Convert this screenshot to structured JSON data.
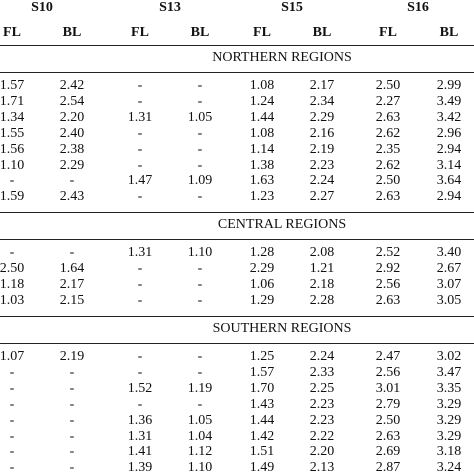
{
  "table": {
    "groups": [
      "S10",
      "S13",
      "S15",
      "S16"
    ],
    "subheaders": [
      "FL",
      "BL",
      "FL",
      "BL",
      "FL",
      "BL",
      "FL",
      "BL"
    ],
    "sections": [
      {
        "title": "NORTHERN REGIONS",
        "rows": [
          [
            "1.57",
            "2.42",
            "-",
            "-",
            "1.08",
            "2.17",
            "2.50",
            "2.99"
          ],
          [
            "1.71",
            "2.54",
            "-",
            "-",
            "1.24",
            "2.34",
            "2.27",
            "3.49"
          ],
          [
            "1.34",
            "2.20",
            "1.31",
            "1.05",
            "1.44",
            "2.29",
            "2.63",
            "3.42"
          ],
          [
            "1.55",
            "2.40",
            "-",
            "-",
            "1.08",
            "2.16",
            "2.62",
            "2.96"
          ],
          [
            "1.56",
            "2.38",
            "-",
            "-",
            "1.14",
            "2.19",
            "2.35",
            "2.94"
          ],
          [
            "1.10",
            "2.29",
            "-",
            "-",
            "1.38",
            "2.23",
            "2.62",
            "3.14"
          ],
          [
            "-",
            "-",
            "1.47",
            "1.09",
            "1.63",
            "2.24",
            "2.50",
            "3.64"
          ],
          [
            "1.59",
            "2.43",
            "-",
            "-",
            "1.23",
            "2.27",
            "2.63",
            "2.94"
          ]
        ]
      },
      {
        "title": "CENTRAL REGIONS",
        "rows": [
          [
            "-",
            "-",
            "1.31",
            "1.10",
            "1.28",
            "2.08",
            "2.52",
            "3.40"
          ],
          [
            "2.50",
            "1.64",
            "-",
            "-",
            "2.29",
            "1.21",
            "2.92",
            "2.67"
          ],
          [
            "1.18",
            "2.17",
            "-",
            "-",
            "1.06",
            "2.18",
            "2.56",
            "3.07"
          ],
          [
            "1.03",
            "2.15",
            "-",
            "-",
            "1.29",
            "2.28",
            "2.63",
            "3.05"
          ]
        ]
      },
      {
        "title": "SOUTHERN REGIONS",
        "rows": [
          [
            "1.07",
            "2.19",
            "-",
            "-",
            "1.25",
            "2.24",
            "2.47",
            "3.02"
          ],
          [
            "-",
            "-",
            "-",
            "-",
            "1.57",
            "2.33",
            "2.56",
            "3.47"
          ],
          [
            "-",
            "-",
            "1.52",
            "1.19",
            "1.70",
            "2.25",
            "3.01",
            "3.35"
          ],
          [
            "-",
            "-",
            "-",
            "-",
            "1.43",
            "2.23",
            "2.79",
            "3.29"
          ],
          [
            "-",
            "-",
            "1.36",
            "1.05",
            "1.44",
            "2.23",
            "2.50",
            "3.29"
          ],
          [
            "-",
            "-",
            "1.31",
            "1.04",
            "1.42",
            "2.22",
            "2.63",
            "3.29"
          ],
          [
            "-",
            "-",
            "1.41",
            "1.12",
            "1.51",
            "2.20",
            "2.69",
            "3.18"
          ],
          [
            "-",
            "-",
            "1.39",
            "1.10",
            "1.49",
            "2.13",
            "2.87",
            "3.24"
          ]
        ]
      }
    ]
  }
}
